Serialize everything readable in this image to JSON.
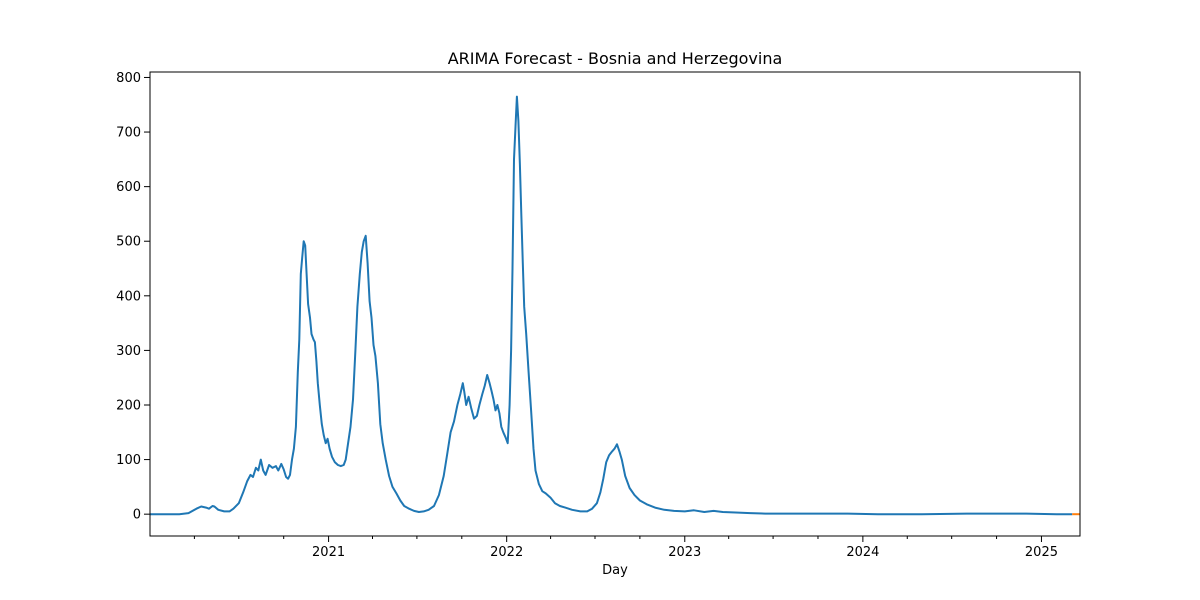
{
  "chart_data": {
    "type": "line",
    "title": "ARIMA Forecast - Bosnia and Herzegovina",
    "xlabel": "Day",
    "ylabel": "",
    "xlim": [
      "2020-01-01",
      "2025-03-21"
    ],
    "ylim": [
      -40,
      810
    ],
    "x_ticks": [
      {
        "date": "2021-01-01",
        "label": "2021"
      },
      {
        "date": "2022-01-01",
        "label": "2022"
      },
      {
        "date": "2023-01-01",
        "label": "2023"
      },
      {
        "date": "2024-01-01",
        "label": "2024"
      },
      {
        "date": "2025-01-01",
        "label": "2025"
      }
    ],
    "x_minor_ticks": [
      "2020-04-01",
      "2020-07-01",
      "2020-10-01",
      "2021-04-01",
      "2021-07-01",
      "2021-10-01",
      "2022-04-01",
      "2022-07-01",
      "2022-10-01",
      "2023-04-01",
      "2023-07-01",
      "2023-10-01",
      "2024-04-01",
      "2024-07-01",
      "2024-10-01"
    ],
    "y_ticks": [
      0,
      100,
      200,
      300,
      400,
      500,
      600,
      700,
      800
    ],
    "grid": false,
    "legend": "none",
    "series": [
      {
        "color": "#1f77b4",
        "points": [
          [
            "2020-01-01",
            0
          ],
          [
            "2020-03-01",
            0
          ],
          [
            "2020-03-20",
            2
          ],
          [
            "2020-04-05",
            10
          ],
          [
            "2020-04-15",
            14
          ],
          [
            "2020-04-25",
            12
          ],
          [
            "2020-05-01",
            10
          ],
          [
            "2020-05-08",
            15
          ],
          [
            "2020-05-12",
            14
          ],
          [
            "2020-05-20",
            8
          ],
          [
            "2020-06-01",
            5
          ],
          [
            "2020-06-12",
            5
          ],
          [
            "2020-06-20",
            10
          ],
          [
            "2020-07-01",
            20
          ],
          [
            "2020-07-10",
            40
          ],
          [
            "2020-07-18",
            60
          ],
          [
            "2020-07-25",
            72
          ],
          [
            "2020-07-30",
            68
          ],
          [
            "2020-08-05",
            85
          ],
          [
            "2020-08-10",
            80
          ],
          [
            "2020-08-15",
            100
          ],
          [
            "2020-08-20",
            80
          ],
          [
            "2020-08-25",
            72
          ],
          [
            "2020-09-01",
            90
          ],
          [
            "2020-09-08",
            85
          ],
          [
            "2020-09-15",
            88
          ],
          [
            "2020-09-20",
            80
          ],
          [
            "2020-09-26",
            92
          ],
          [
            "2020-10-01",
            82
          ],
          [
            "2020-10-06",
            68
          ],
          [
            "2020-10-10",
            65
          ],
          [
            "2020-10-14",
            72
          ],
          [
            "2020-10-18",
            100
          ],
          [
            "2020-10-22",
            120
          ],
          [
            "2020-10-26",
            160
          ],
          [
            "2020-10-30",
            260
          ],
          [
            "2020-11-02",
            320
          ],
          [
            "2020-11-05",
            440
          ],
          [
            "2020-11-08",
            470
          ],
          [
            "2020-11-11",
            500
          ],
          [
            "2020-11-14",
            492
          ],
          [
            "2020-11-17",
            440
          ],
          [
            "2020-11-20",
            385
          ],
          [
            "2020-11-24",
            360
          ],
          [
            "2020-11-27",
            330
          ],
          [
            "2020-12-01",
            320
          ],
          [
            "2020-12-04",
            315
          ],
          [
            "2020-12-07",
            280
          ],
          [
            "2020-12-10",
            240
          ],
          [
            "2020-12-14",
            200
          ],
          [
            "2020-12-18",
            165
          ],
          [
            "2020-12-22",
            145
          ],
          [
            "2020-12-26",
            130
          ],
          [
            "2020-12-30",
            138
          ],
          [
            "2021-01-03",
            120
          ],
          [
            "2021-01-08",
            105
          ],
          [
            "2021-01-14",
            95
          ],
          [
            "2021-01-20",
            90
          ],
          [
            "2021-01-26",
            88
          ],
          [
            "2021-02-01",
            90
          ],
          [
            "2021-02-05",
            100
          ],
          [
            "2021-02-10",
            130
          ],
          [
            "2021-02-15",
            160
          ],
          [
            "2021-02-20",
            210
          ],
          [
            "2021-02-25",
            300
          ],
          [
            "2021-03-01",
            380
          ],
          [
            "2021-03-06",
            440
          ],
          [
            "2021-03-10",
            480
          ],
          [
            "2021-03-14",
            500
          ],
          [
            "2021-03-18",
            510
          ],
          [
            "2021-03-22",
            460
          ],
          [
            "2021-03-26",
            390
          ],
          [
            "2021-03-30",
            360
          ],
          [
            "2021-04-03",
            310
          ],
          [
            "2021-04-07",
            290
          ],
          [
            "2021-04-12",
            240
          ],
          [
            "2021-04-17",
            165
          ],
          [
            "2021-04-22",
            130
          ],
          [
            "2021-04-28",
            100
          ],
          [
            "2021-05-05",
            70
          ],
          [
            "2021-05-12",
            50
          ],
          [
            "2021-05-20",
            38
          ],
          [
            "2021-05-28",
            25
          ],
          [
            "2021-06-05",
            15
          ],
          [
            "2021-06-15",
            10
          ],
          [
            "2021-06-25",
            6
          ],
          [
            "2021-07-05",
            4
          ],
          [
            "2021-07-15",
            5
          ],
          [
            "2021-07-25",
            8
          ],
          [
            "2021-08-05",
            15
          ],
          [
            "2021-08-15",
            35
          ],
          [
            "2021-08-25",
            70
          ],
          [
            "2021-09-01",
            110
          ],
          [
            "2021-09-08",
            150
          ],
          [
            "2021-09-15",
            170
          ],
          [
            "2021-09-22",
            200
          ],
          [
            "2021-09-28",
            220
          ],
          [
            "2021-10-03",
            240
          ],
          [
            "2021-10-06",
            225
          ],
          [
            "2021-10-10",
            200
          ],
          [
            "2021-10-15",
            215
          ],
          [
            "2021-10-20",
            195
          ],
          [
            "2021-10-26",
            175
          ],
          [
            "2021-11-01",
            180
          ],
          [
            "2021-11-06",
            200
          ],
          [
            "2021-11-12",
            220
          ],
          [
            "2021-11-17",
            235
          ],
          [
            "2021-11-22",
            255
          ],
          [
            "2021-11-27",
            240
          ],
          [
            "2021-12-01",
            225
          ],
          [
            "2021-12-05",
            210
          ],
          [
            "2021-12-09",
            190
          ],
          [
            "2021-12-13",
            200
          ],
          [
            "2021-12-17",
            185
          ],
          [
            "2021-12-21",
            160
          ],
          [
            "2021-12-25",
            150
          ],
          [
            "2021-12-30",
            140
          ],
          [
            "2022-01-03",
            130
          ],
          [
            "2022-01-07",
            200
          ],
          [
            "2022-01-10",
            300
          ],
          [
            "2022-01-13",
            450
          ],
          [
            "2022-01-16",
            650
          ],
          [
            "2022-01-19",
            710
          ],
          [
            "2022-01-22",
            765
          ],
          [
            "2022-01-25",
            720
          ],
          [
            "2022-01-28",
            640
          ],
          [
            "2022-01-31",
            550
          ],
          [
            "2022-02-03",
            460
          ],
          [
            "2022-02-06",
            380
          ],
          [
            "2022-02-10",
            330
          ],
          [
            "2022-02-15",
            260
          ],
          [
            "2022-02-20",
            190
          ],
          [
            "2022-02-25",
            120
          ],
          [
            "2022-03-01",
            80
          ],
          [
            "2022-03-08",
            55
          ],
          [
            "2022-03-15",
            42
          ],
          [
            "2022-03-22",
            38
          ],
          [
            "2022-04-01",
            30
          ],
          [
            "2022-04-10",
            20
          ],
          [
            "2022-04-20",
            15
          ],
          [
            "2022-05-01",
            12
          ],
          [
            "2022-05-15",
            8
          ],
          [
            "2022-06-01",
            5
          ],
          [
            "2022-06-15",
            5
          ],
          [
            "2022-06-25",
            10
          ],
          [
            "2022-07-05",
            20
          ],
          [
            "2022-07-12",
            40
          ],
          [
            "2022-07-18",
            65
          ],
          [
            "2022-07-24",
            95
          ],
          [
            "2022-07-30",
            108
          ],
          [
            "2022-08-05",
            115
          ],
          [
            "2022-08-10",
            120
          ],
          [
            "2022-08-15",
            128
          ],
          [
            "2022-08-20",
            115
          ],
          [
            "2022-08-25",
            100
          ],
          [
            "2022-09-01",
            70
          ],
          [
            "2022-09-10",
            48
          ],
          [
            "2022-09-20",
            35
          ],
          [
            "2022-10-01",
            25
          ],
          [
            "2022-10-15",
            18
          ],
          [
            "2022-11-01",
            12
          ],
          [
            "2022-11-20",
            8
          ],
          [
            "2022-12-10",
            6
          ],
          [
            "2023-01-01",
            5
          ],
          [
            "2023-01-20",
            7
          ],
          [
            "2023-02-10",
            4
          ],
          [
            "2023-03-01",
            6
          ],
          [
            "2023-03-20",
            4
          ],
          [
            "2023-04-15",
            3
          ],
          [
            "2023-05-15",
            2
          ],
          [
            "2023-06-15",
            1
          ],
          [
            "2023-08-01",
            1
          ],
          [
            "2023-10-01",
            1
          ],
          [
            "2023-12-01",
            1
          ],
          [
            "2024-02-01",
            0
          ],
          [
            "2024-05-01",
            0
          ],
          [
            "2024-08-01",
            1
          ],
          [
            "2024-10-01",
            1
          ],
          [
            "2024-12-01",
            1
          ],
          [
            "2025-02-01",
            0
          ],
          [
            "2025-03-05",
            0
          ]
        ]
      },
      {
        "color": "#ff7f0e",
        "points": [
          [
            "2025-03-05",
            0
          ],
          [
            "2025-03-21",
            0
          ]
        ]
      }
    ]
  }
}
